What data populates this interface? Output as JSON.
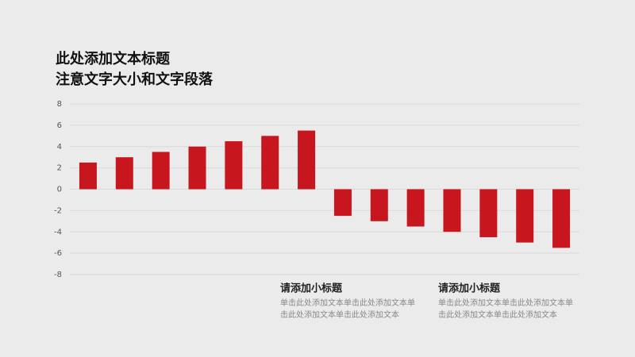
{
  "chart_data": {
    "type": "bar",
    "title": "此处添加文本标题",
    "subtitle": "注意文字大小和文字段落",
    "categories": [
      null,
      null,
      null,
      null,
      null,
      null,
      null,
      null,
      null,
      null,
      null,
      null,
      null,
      null
    ],
    "values": [
      2.5,
      3,
      3.5,
      4,
      4.5,
      5,
      5.5,
      -2.5,
      -3,
      -3.5,
      -4,
      -4.5,
      -5,
      -5.5
    ],
    "color": "#c8161e",
    "ylim": [
      -8,
      8
    ],
    "yticks": [
      -8,
      -6,
      -4,
      -2,
      0,
      2,
      4,
      6,
      8
    ],
    "grid": true
  },
  "text_blocks": [
    {
      "heading": "请添加小标题",
      "lines": [
        "单击此处添加文本单击此处添加文本单",
        "击此处添加文本单击此处添加文本"
      ]
    },
    {
      "heading": "请添加小标题",
      "lines": [
        "单击此处添加文本单击此处添加文本单",
        "击此处添加文本单击此处添加文本"
      ]
    }
  ]
}
